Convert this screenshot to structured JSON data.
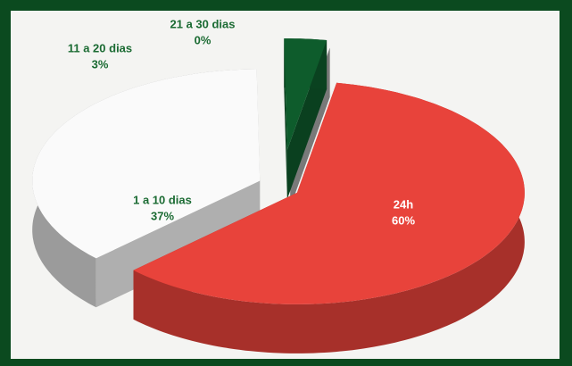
{
  "chart_data": {
    "type": "pie",
    "categories": [
      "24h",
      "1 a 10 dias",
      "11 a 20 dias",
      "21 a 30 dias"
    ],
    "values": [
      60,
      37,
      3,
      0
    ],
    "value_labels": [
      "60%",
      "37%",
      "3%",
      "0%"
    ],
    "colors": [
      "#e8433b",
      "#fafafa",
      "#0e5c2c",
      "#8e8e8e"
    ],
    "label_colors": [
      "#ffffff",
      "#1b6b33",
      "#1b6b33",
      "#1b6b33"
    ]
  }
}
